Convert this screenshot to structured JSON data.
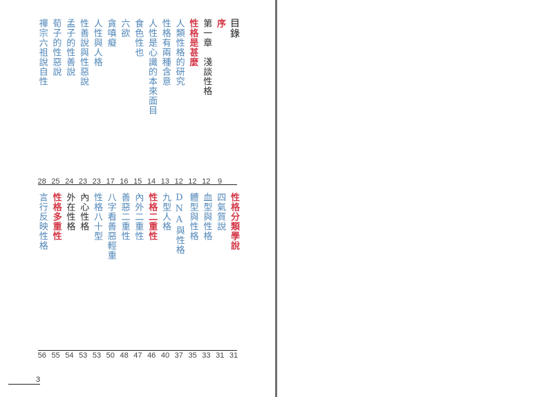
{
  "toc": {
    "title": "目錄",
    "upper": [
      {
        "label": "序",
        "style": "red",
        "page": "9"
      },
      {
        "label": "第一章　淺談性格",
        "style": "black",
        "page": "12"
      },
      {
        "label": "性格是甚麼",
        "style": "red",
        "page": "12"
      },
      {
        "label": "人類性格的研究",
        "style": "blue",
        "page": "12"
      },
      {
        "label": "性格有兩種含意",
        "style": "blue",
        "page": "13"
      },
      {
        "label": "人性是心識的本來面目",
        "style": "blue",
        "page": "14"
      },
      {
        "label": "食色性也",
        "style": "blue",
        "page": "15"
      },
      {
        "label": "六欲",
        "style": "blue",
        "page": "16"
      },
      {
        "label": "貪嗔癡",
        "style": "blue",
        "page": "17"
      },
      {
        "label": "人性與人格",
        "style": "blue",
        "page": "23"
      },
      {
        "label": "性善說與性惡說",
        "style": "blue",
        "page": "23"
      },
      {
        "label": "孟子的性善說",
        "style": "blue",
        "page": "24"
      },
      {
        "label": "荀子的性惡說",
        "style": "blue",
        "page": "25"
      },
      {
        "label": "禪宗六祖說自性",
        "style": "blue",
        "page": "28"
      }
    ],
    "lower": [
      {
        "label": "性格分類學說",
        "style": "red",
        "page": "31"
      },
      {
        "label": "四氣質說",
        "style": "blue",
        "page": "31"
      },
      {
        "label": "血型與性格",
        "style": "blue",
        "page": "33"
      },
      {
        "label": "體型與性格",
        "style": "blue",
        "page": "35"
      },
      {
        "label": "DNA與性格",
        "style": "blue",
        "page": "37"
      },
      {
        "label": "九型人格",
        "style": "blue",
        "page": "40"
      },
      {
        "label": "性格二重性",
        "style": "red",
        "page": "46"
      },
      {
        "label": "內外二重性",
        "style": "blue",
        "page": "47"
      },
      {
        "label": "善惡二重性",
        "style": "blue",
        "page": "48"
      },
      {
        "label": "八字看善惡輕重",
        "style": "blue",
        "page": "50"
      },
      {
        "label": "性格八十型",
        "style": "blue",
        "page": "53"
      },
      {
        "label": "內心性格",
        "style": "black",
        "page": "53"
      },
      {
        "label": "外在性格",
        "style": "black",
        "page": "54"
      },
      {
        "label": "性格多重性",
        "style": "red",
        "page": "55"
      },
      {
        "label": "言行反映性格",
        "style": "blue",
        "page": "56"
      }
    ]
  },
  "page_number": "3",
  "colors": {
    "blue": "#4f86b8",
    "red": "#d43848",
    "black": "#2a2a2a"
  }
}
